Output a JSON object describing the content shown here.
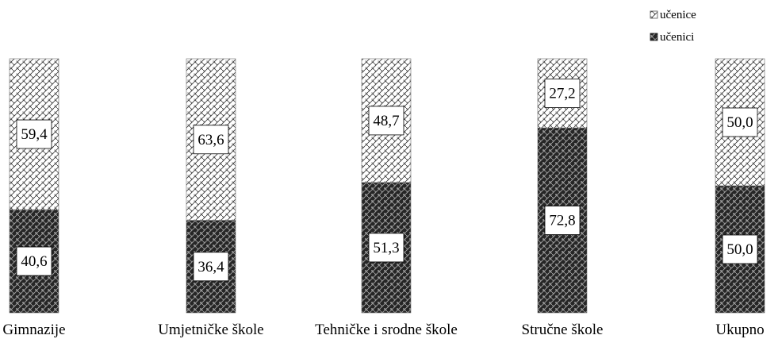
{
  "chart_data": {
    "type": "bar",
    "stacked": true,
    "percent": true,
    "categories": [
      "Gimnazije",
      "Umjetničke škole",
      "Tehničke i srodne škole",
      "Stručne škole",
      "Ukupno"
    ],
    "series": [
      {
        "name": "učenici",
        "values": [
          40.6,
          36.4,
          51.3,
          72.8,
          50.0
        ],
        "value_labels": [
          "40,6",
          "36,4",
          "51,3",
          "72,8",
          "50,0"
        ],
        "color": "#333333"
      },
      {
        "name": "učenice",
        "values": [
          59.4,
          63.6,
          48.7,
          27.2,
          50.0
        ],
        "value_labels": [
          "59,4",
          "63,6",
          "48,7",
          "27,2",
          "50,0"
        ],
        "color": "#e8e8e8"
      }
    ],
    "ylim": [
      0,
      100
    ],
    "legend": {
      "position": "top-right",
      "items": [
        "učenice",
        "učenici"
      ]
    },
    "grid": false
  }
}
